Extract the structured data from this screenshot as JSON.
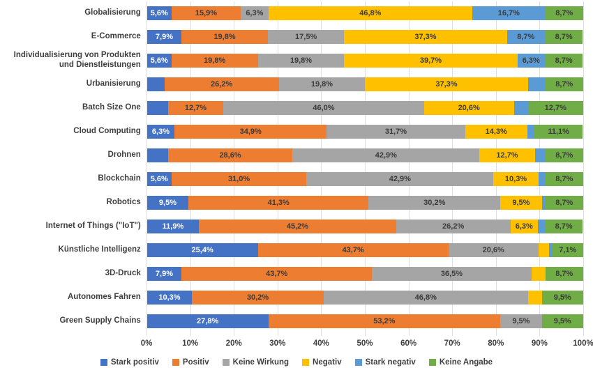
{
  "chart_data": {
    "type": "bar",
    "variant": "horizontal-stacked-100",
    "title": "",
    "xlabel": "",
    "ylabel": "",
    "x_axis": {
      "min": 0,
      "max": 100,
      "ticks": [
        "0%",
        "10%",
        "20%",
        "30%",
        "40%",
        "50%",
        "60%",
        "70%",
        "80%",
        "90%",
        "100%"
      ]
    },
    "grid": "vertical",
    "gridline_color": "#dedede",
    "legend_position": "bottom",
    "label_threshold": 5,
    "decimal_separator": ",",
    "categories": [
      "Globalisierung",
      "E-Commerce",
      "Individualisierung von Produkten und Dienstleistungen",
      "Urbanisierung",
      "Batch Size One",
      "Cloud Computing",
      "Drohnen",
      "Blockchain",
      "Robotics",
      "Internet of Things (\"IoT\")",
      "Künstliche Intelligenz",
      "3D-Druck",
      "Autonomes Fahren",
      "Green Supply Chains"
    ],
    "series": [
      {
        "name": "Stark positiv",
        "color": "#4472C4",
        "label_color": "#ffffff",
        "values": [
          5.6,
          7.9,
          5.6,
          4.0,
          4.8,
          6.3,
          4.8,
          5.6,
          9.5,
          11.9,
          25.4,
          7.9,
          10.3,
          27.8
        ]
      },
      {
        "name": "Positiv",
        "color": "#ED7D31",
        "label_color": "#3b3b3b",
        "values": [
          15.9,
          19.8,
          19.8,
          26.2,
          12.7,
          34.9,
          28.6,
          31.0,
          41.3,
          45.2,
          43.7,
          43.7,
          30.2,
          53.2
        ]
      },
      {
        "name": "Keine Wirkung",
        "color": "#A5A5A5",
        "label_color": "#3b3b3b",
        "values": [
          6.3,
          17.5,
          19.8,
          19.8,
          46.0,
          31.7,
          42.9,
          42.9,
          30.2,
          26.2,
          20.6,
          36.5,
          46.8,
          9.5
        ]
      },
      {
        "name": "Negativ",
        "color": "#FFC000",
        "label_color": "#3b3b3b",
        "values": [
          46.8,
          37.3,
          39.7,
          37.3,
          20.6,
          14.3,
          12.7,
          10.3,
          9.5,
          6.3,
          2.4,
          3.2,
          3.2,
          0
        ]
      },
      {
        "name": "Stark negativ",
        "color": "#5B9BD5",
        "label_color": "#3b3b3b",
        "values": [
          16.7,
          8.7,
          6.3,
          4.0,
          3.2,
          1.6,
          2.4,
          1.6,
          0.8,
          1.6,
          0.8,
          0,
          0,
          0
        ]
      },
      {
        "name": "Keine Angabe",
        "color": "#70AD47",
        "label_color": "#3b3b3b",
        "values": [
          8.7,
          8.7,
          8.7,
          8.7,
          12.7,
          11.1,
          8.7,
          8.7,
          8.7,
          8.7,
          7.1,
          8.7,
          9.5,
          9.5
        ]
      }
    ]
  }
}
